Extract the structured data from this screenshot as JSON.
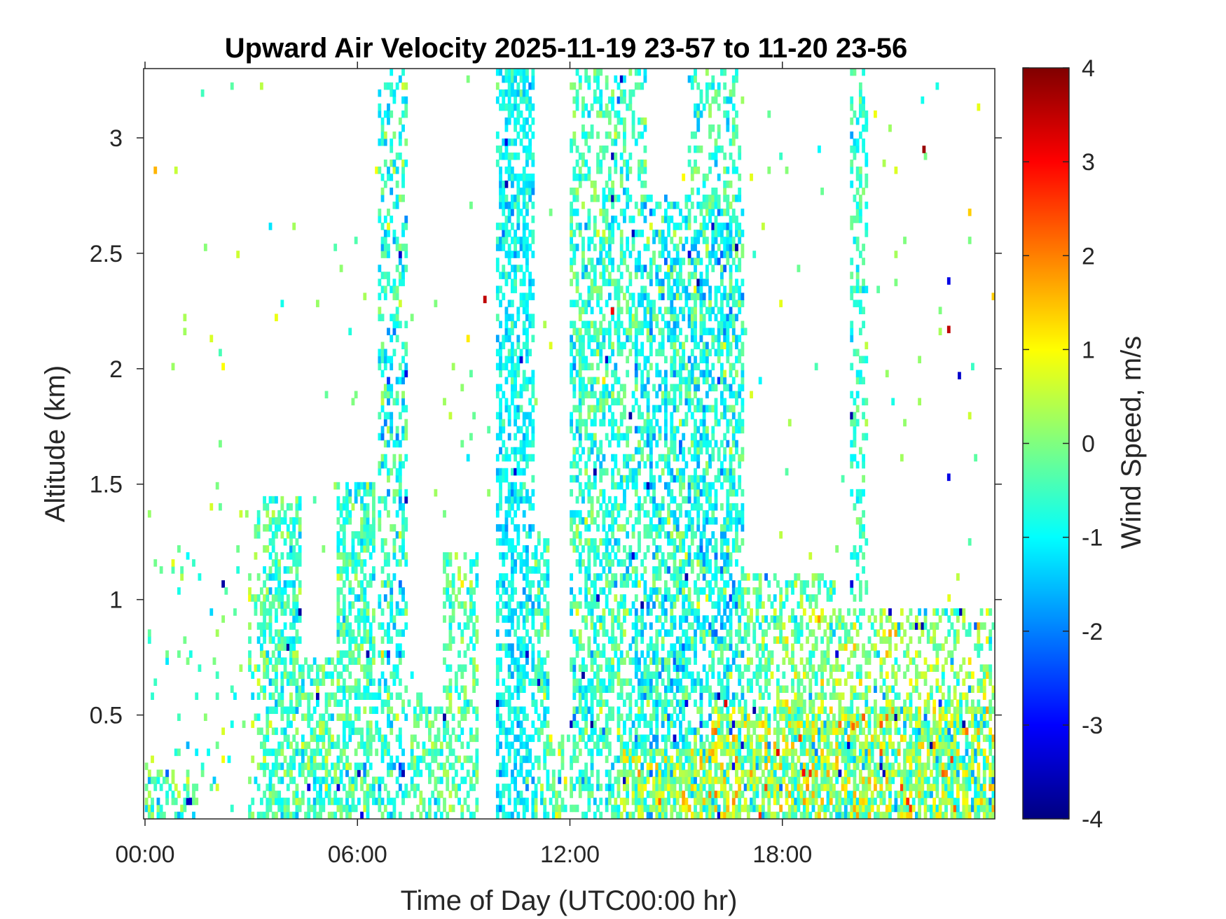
{
  "chart_data": {
    "type": "heatmap",
    "title": "Upward Air Velocity 2025-11-19 23-57 to 11-20 23-56",
    "xlabel": "Time of Day (UTC00:00 hr)",
    "ylabel": "Altitude (km)",
    "xlim_hours": [
      0,
      24
    ],
    "ylim_km": [
      0.05,
      3.3
    ],
    "x_ticks": [
      {
        "value": 0,
        "label": "00:00"
      },
      {
        "value": 6,
        "label": "06:00"
      },
      {
        "value": 12,
        "label": "12:00"
      },
      {
        "value": 18,
        "label": "18:00"
      }
    ],
    "y_ticks": [
      {
        "value": 0.5,
        "label": "0.5"
      },
      {
        "value": 1,
        "label": "1"
      },
      {
        "value": 1.5,
        "label": "1.5"
      },
      {
        "value": 2,
        "label": "2"
      },
      {
        "value": 2.5,
        "label": "2.5"
      },
      {
        "value": 3,
        "label": "3"
      }
    ],
    "colorbar": {
      "label": "Wind Speed, m/s",
      "colormap": "jet",
      "range": [
        -4,
        4
      ],
      "ticks": [
        {
          "value": 4,
          "label": "4"
        },
        {
          "value": 3,
          "label": "3"
        },
        {
          "value": 2,
          "label": "2"
        },
        {
          "value": 1,
          "label": "1"
        },
        {
          "value": 0,
          "label": "0"
        },
        {
          "value": -1,
          "label": "-1"
        },
        {
          "value": -2,
          "label": "-2"
        },
        {
          "value": -3,
          "label": "-3"
        },
        {
          "value": -4,
          "label": "-4"
        }
      ]
    },
    "regions": [
      {
        "t0": 0.0,
        "t1": 1.5,
        "zmax": 0.25,
        "density": 0.45,
        "mean": -0.3,
        "sd": 0.6
      },
      {
        "t0": 0.0,
        "t1": 3.0,
        "zmax": 1.2,
        "density": 0.05,
        "mean": -0.4,
        "sd": 0.6
      },
      {
        "t0": 2.9,
        "t1": 3.6,
        "zmax": 1.4,
        "density": 0.3,
        "mean": -0.4,
        "sd": 0.5
      },
      {
        "t0": 3.3,
        "t1": 4.4,
        "zmax": 1.45,
        "density": 0.6,
        "mean": -0.5,
        "sd": 0.5
      },
      {
        "t0": 4.4,
        "t1": 5.6,
        "zmax": 0.75,
        "density": 0.55,
        "mean": -0.4,
        "sd": 0.5
      },
      {
        "t0": 5.4,
        "t1": 6.5,
        "zmax": 1.5,
        "density": 0.6,
        "mean": -0.5,
        "sd": 0.5
      },
      {
        "t0": 6.5,
        "t1": 7.8,
        "zmax": 0.6,
        "density": 0.3,
        "mean": -0.4,
        "sd": 0.5
      },
      {
        "t0": 7.5,
        "t1": 8.6,
        "zmax": 0.55,
        "density": 0.5,
        "mean": -0.3,
        "sd": 0.5
      },
      {
        "t0": 8.4,
        "t1": 9.4,
        "zmax": 1.2,
        "density": 0.45,
        "mean": -0.3,
        "sd": 0.5
      },
      {
        "t0": 10.0,
        "t1": 11.4,
        "zmax": 1.3,
        "density": 0.5,
        "mean": -0.6,
        "sd": 0.5
      },
      {
        "t0": 11.0,
        "t1": 12.5,
        "zmax": 0.4,
        "density": 0.35,
        "mean": -0.2,
        "sd": 0.6
      },
      {
        "t0": 12.0,
        "t1": 13.6,
        "zmax": 2.7,
        "density": 0.5,
        "mean": -0.6,
        "sd": 0.5
      },
      {
        "t0": 13.4,
        "t1": 16.0,
        "zmax": 0.35,
        "density": 0.75,
        "mean": 0.0,
        "sd": 0.8
      },
      {
        "t0": 13.8,
        "t1": 16.9,
        "zmax": 2.75,
        "density": 0.55,
        "mean": -0.8,
        "sd": 0.6
      },
      {
        "t0": 15.8,
        "t1": 19.5,
        "zmax": 1.1,
        "density": 0.45,
        "mean": -0.2,
        "sd": 0.6
      },
      {
        "t0": 16.0,
        "t1": 24.0,
        "zmax": 0.55,
        "density": 0.75,
        "mean": 0.1,
        "sd": 0.9
      },
      {
        "t0": 19.0,
        "t1": 24.0,
        "zmax": 0.95,
        "density": 0.4,
        "mean": 0.0,
        "sd": 0.7
      },
      {
        "t0": 6.6,
        "t1": 7.4,
        "zmax": 3.3,
        "density": 0.4,
        "mean": -0.7,
        "sd": 0.6
      },
      {
        "t0": 9.9,
        "t1": 11.0,
        "zmax": 3.3,
        "density": 0.55,
        "mean": -1.0,
        "sd": 0.4
      },
      {
        "t0": 12.0,
        "t1": 14.2,
        "zmax": 3.3,
        "density": 0.35,
        "mean": -0.6,
        "sd": 0.5
      },
      {
        "t0": 15.3,
        "t1": 16.8,
        "zmax": 3.3,
        "density": 0.3,
        "mean": -0.5,
        "sd": 0.5
      },
      {
        "t0": 19.9,
        "t1": 20.4,
        "zmax": 3.3,
        "density": 0.35,
        "mean": -0.6,
        "sd": 0.4
      }
    ],
    "extremes": [
      {
        "t": 22.0,
        "z": 2.95,
        "v": 3.8
      },
      {
        "t": 22.7,
        "z": 2.38,
        "v": -3.2
      },
      {
        "t": 22.7,
        "z": 2.17,
        "v": 3.5
      },
      {
        "t": 22.7,
        "z": 1.53,
        "v": -3.2
      },
      {
        "t": 23.0,
        "z": 1.97,
        "v": -3.4
      },
      {
        "t": 9.6,
        "z": 2.3,
        "v": 3.5
      },
      {
        "t": 13.2,
        "z": 2.25,
        "v": 3.0
      },
      {
        "t": 18.5,
        "z": 0.4,
        "v": 2.5
      },
      {
        "t": 18.6,
        "z": 0.25,
        "v": 3.0
      },
      {
        "t": 20.0,
        "z": 0.45,
        "v": 2.2
      },
      {
        "t": 16.4,
        "z": 0.55,
        "v": 3.2
      }
    ]
  }
}
